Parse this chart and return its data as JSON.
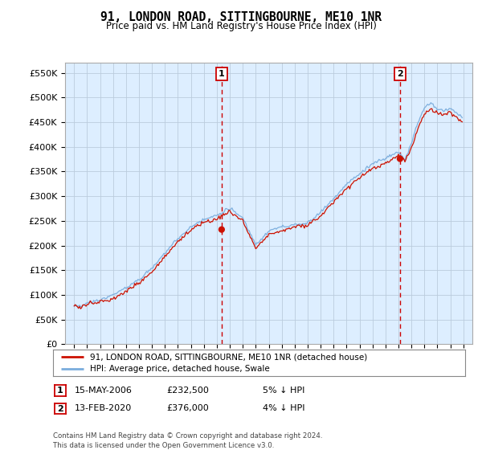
{
  "title": "91, LONDON ROAD, SITTINGBOURNE, ME10 1NR",
  "subtitle": "Price paid vs. HM Land Registry's House Price Index (HPI)",
  "ylabel_ticks": [
    "£0",
    "£50K",
    "£100K",
    "£150K",
    "£200K",
    "£250K",
    "£300K",
    "£350K",
    "£400K",
    "£450K",
    "£500K",
    "£550K"
  ],
  "ytick_vals": [
    0,
    50000,
    100000,
    150000,
    200000,
    250000,
    300000,
    350000,
    400000,
    450000,
    500000,
    550000
  ],
  "ylim": [
    0,
    570000
  ],
  "transaction1": {
    "date": "15-MAY-2006",
    "price": 232500,
    "pct": "5% ↓ HPI",
    "label": "1",
    "year": 2006.37
  },
  "transaction2": {
    "date": "13-FEB-2020",
    "price": 376000,
    "pct": "4% ↓ HPI",
    "label": "2",
    "year": 2020.12
  },
  "legend_property": "91, LONDON ROAD, SITTINGBOURNE, ME10 1NR (detached house)",
  "legend_hpi": "HPI: Average price, detached house, Swale",
  "footer": "Contains HM Land Registry data © Crown copyright and database right 2024.\nThis data is licensed under the Open Government Licence v3.0.",
  "hpi_color": "#7aaddd",
  "property_color": "#cc1100",
  "vline_color": "#cc0000",
  "background_color": "#ffffff",
  "plot_bg_color": "#ddeeff",
  "grid_color": "#bbccdd"
}
